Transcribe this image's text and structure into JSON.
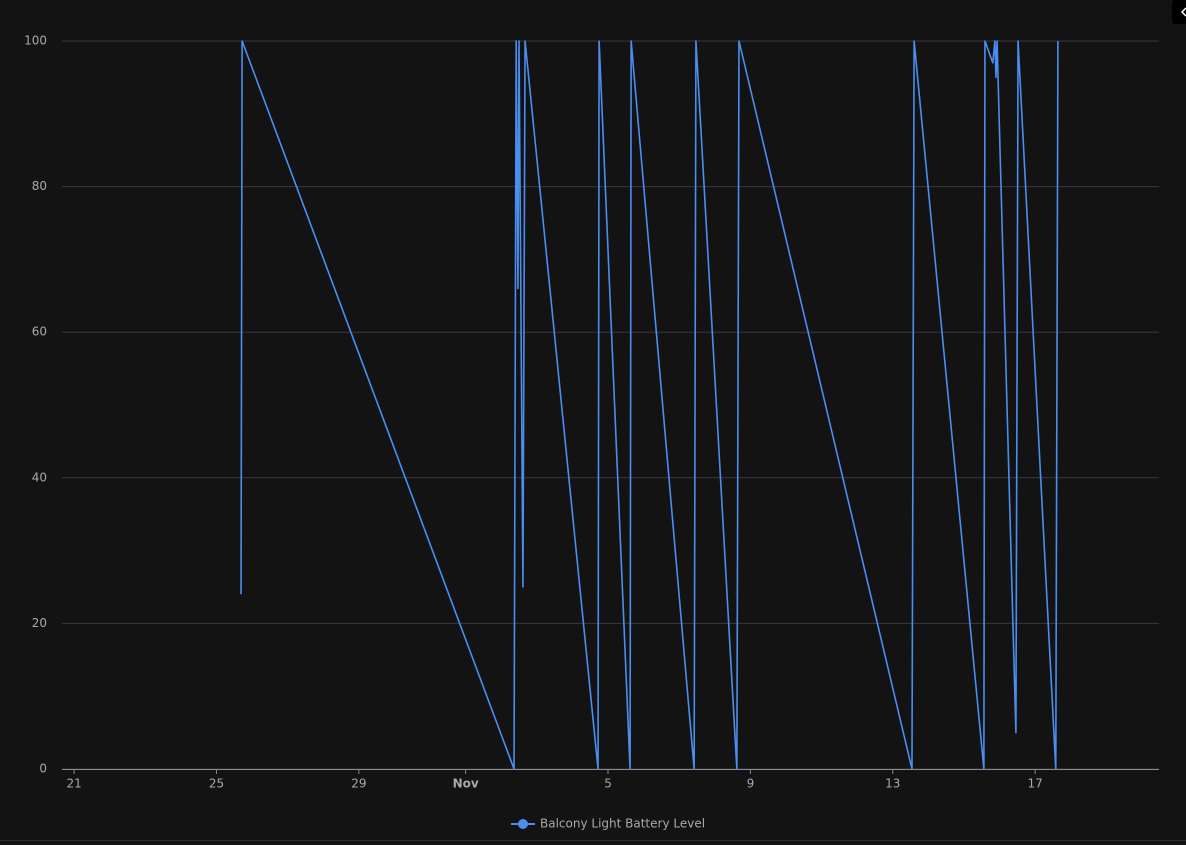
{
  "chart_data": {
    "type": "line",
    "xlim": [
      20.66,
      51.48
    ],
    "xticks": [
      21,
      25,
      29,
      {
        "value": 32,
        "label": "Nov"
      },
      {
        "value": 36,
        "label": "5"
      },
      {
        "value": 40,
        "label": "9"
      },
      {
        "value": 44,
        "label": "13"
      },
      {
        "value": 48,
        "label": "17"
      }
    ],
    "ylim": [
      0,
      100
    ],
    "yticks": [
      0,
      20,
      40,
      60,
      80,
      100
    ],
    "grid": true,
    "legend": "bottom",
    "series": [
      {
        "name": "Balcony Light Battery Level",
        "color": "#4a8ef0",
        "x": [
          25.69,
          25.72,
          33.36,
          33.42,
          33.47,
          33.5,
          33.61,
          33.67,
          35.72,
          35.75,
          36.62,
          36.65,
          38.42,
          38.47,
          39.62,
          39.68,
          44.54,
          44.6,
          46.56,
          46.59,
          46.81,
          46.87,
          46.9,
          46.93,
          47.46,
          47.52,
          48.58,
          48.64
        ],
        "values": [
          24,
          100,
          0,
          100,
          66,
          100,
          25,
          100,
          0,
          100,
          0,
          100,
          0,
          100,
          0,
          100,
          0,
          100,
          0,
          100,
          97,
          100,
          95,
          100,
          5,
          100,
          0,
          100
        ]
      }
    ]
  }
}
